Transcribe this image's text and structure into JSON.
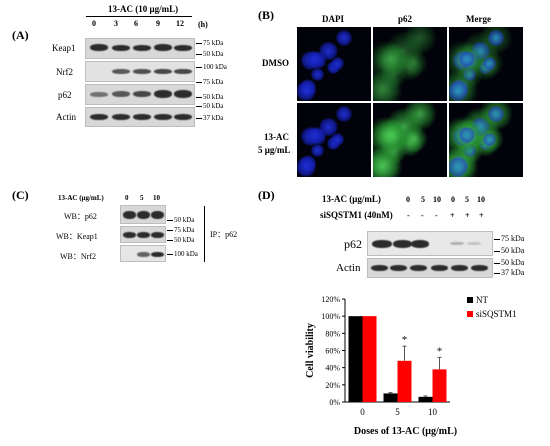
{
  "panelA": {
    "label": "(A)",
    "treatment": "13-AC (10 μg/mL)",
    "unit": "(h)",
    "lanes": [
      "0",
      "3",
      "6",
      "9",
      "12"
    ],
    "rows": [
      "Keap1",
      "Nrf2",
      "p62",
      "Actin"
    ],
    "markers": [
      "75 kDa",
      "50 kDa",
      "100 kDa",
      "75 kDa",
      "50 kDa",
      "50 kDa",
      "37 kDa"
    ]
  },
  "panelB": {
    "label": "(B)",
    "columns": [
      "DAPI",
      "p62",
      "Merge"
    ],
    "row1": "DMSO",
    "row2_line1": "13-AC",
    "row2_line2": "5 μg/mL",
    "colors": {
      "dapi": "#1e2fd0",
      "p62": "#2fb03a",
      "bg": "#02030a"
    }
  },
  "panelC": {
    "label": "(C)",
    "treatment": "13-AC (μg/mL)",
    "lanes": [
      "0",
      "5",
      "10"
    ],
    "rows": [
      "WB：p62",
      "WB：Keap1",
      "WB：Nrf2"
    ],
    "markers": [
      "50 kDa",
      "75 kDa",
      "50 kDa",
      "100 kDa"
    ],
    "ip": "IP：p62"
  },
  "panelD": {
    "label": "(D)",
    "treatment": "13-AC (μg/mL)",
    "doses": [
      "0",
      "5",
      "10",
      "0",
      "5",
      "10"
    ],
    "si_label": "siSQSTM1 (40nM)",
    "si_signs": [
      "-",
      "-",
      "-",
      "+",
      "+",
      "+"
    ],
    "rows": [
      "p62",
      "Actin"
    ],
    "markers": [
      "75 kDa",
      "50 kDa",
      "50 kDa",
      "37 kDa"
    ]
  },
  "chart_data": {
    "type": "bar",
    "categories": [
      "0",
      "5",
      "10"
    ],
    "series": [
      {
        "name": "NT",
        "values": [
          100,
          10,
          6
        ],
        "errors": [
          0,
          1,
          1
        ],
        "color": "#000000"
      },
      {
        "name": "siSQSTM1",
        "values": [
          100,
          48,
          38
        ],
        "errors": [
          0,
          17,
          14
        ],
        "color": "#ff0000"
      }
    ],
    "significance": [
      "",
      "*",
      "*"
    ],
    "xlabel": "Doses of 13-AC (μg/mL)",
    "ylabel": "Cell viability",
    "ylim": [
      0,
      120
    ],
    "yticks": [
      "0%",
      "20%",
      "40%",
      "60%",
      "80%",
      "100%",
      "120%"
    ],
    "legend": "top-right",
    "grid": false
  }
}
